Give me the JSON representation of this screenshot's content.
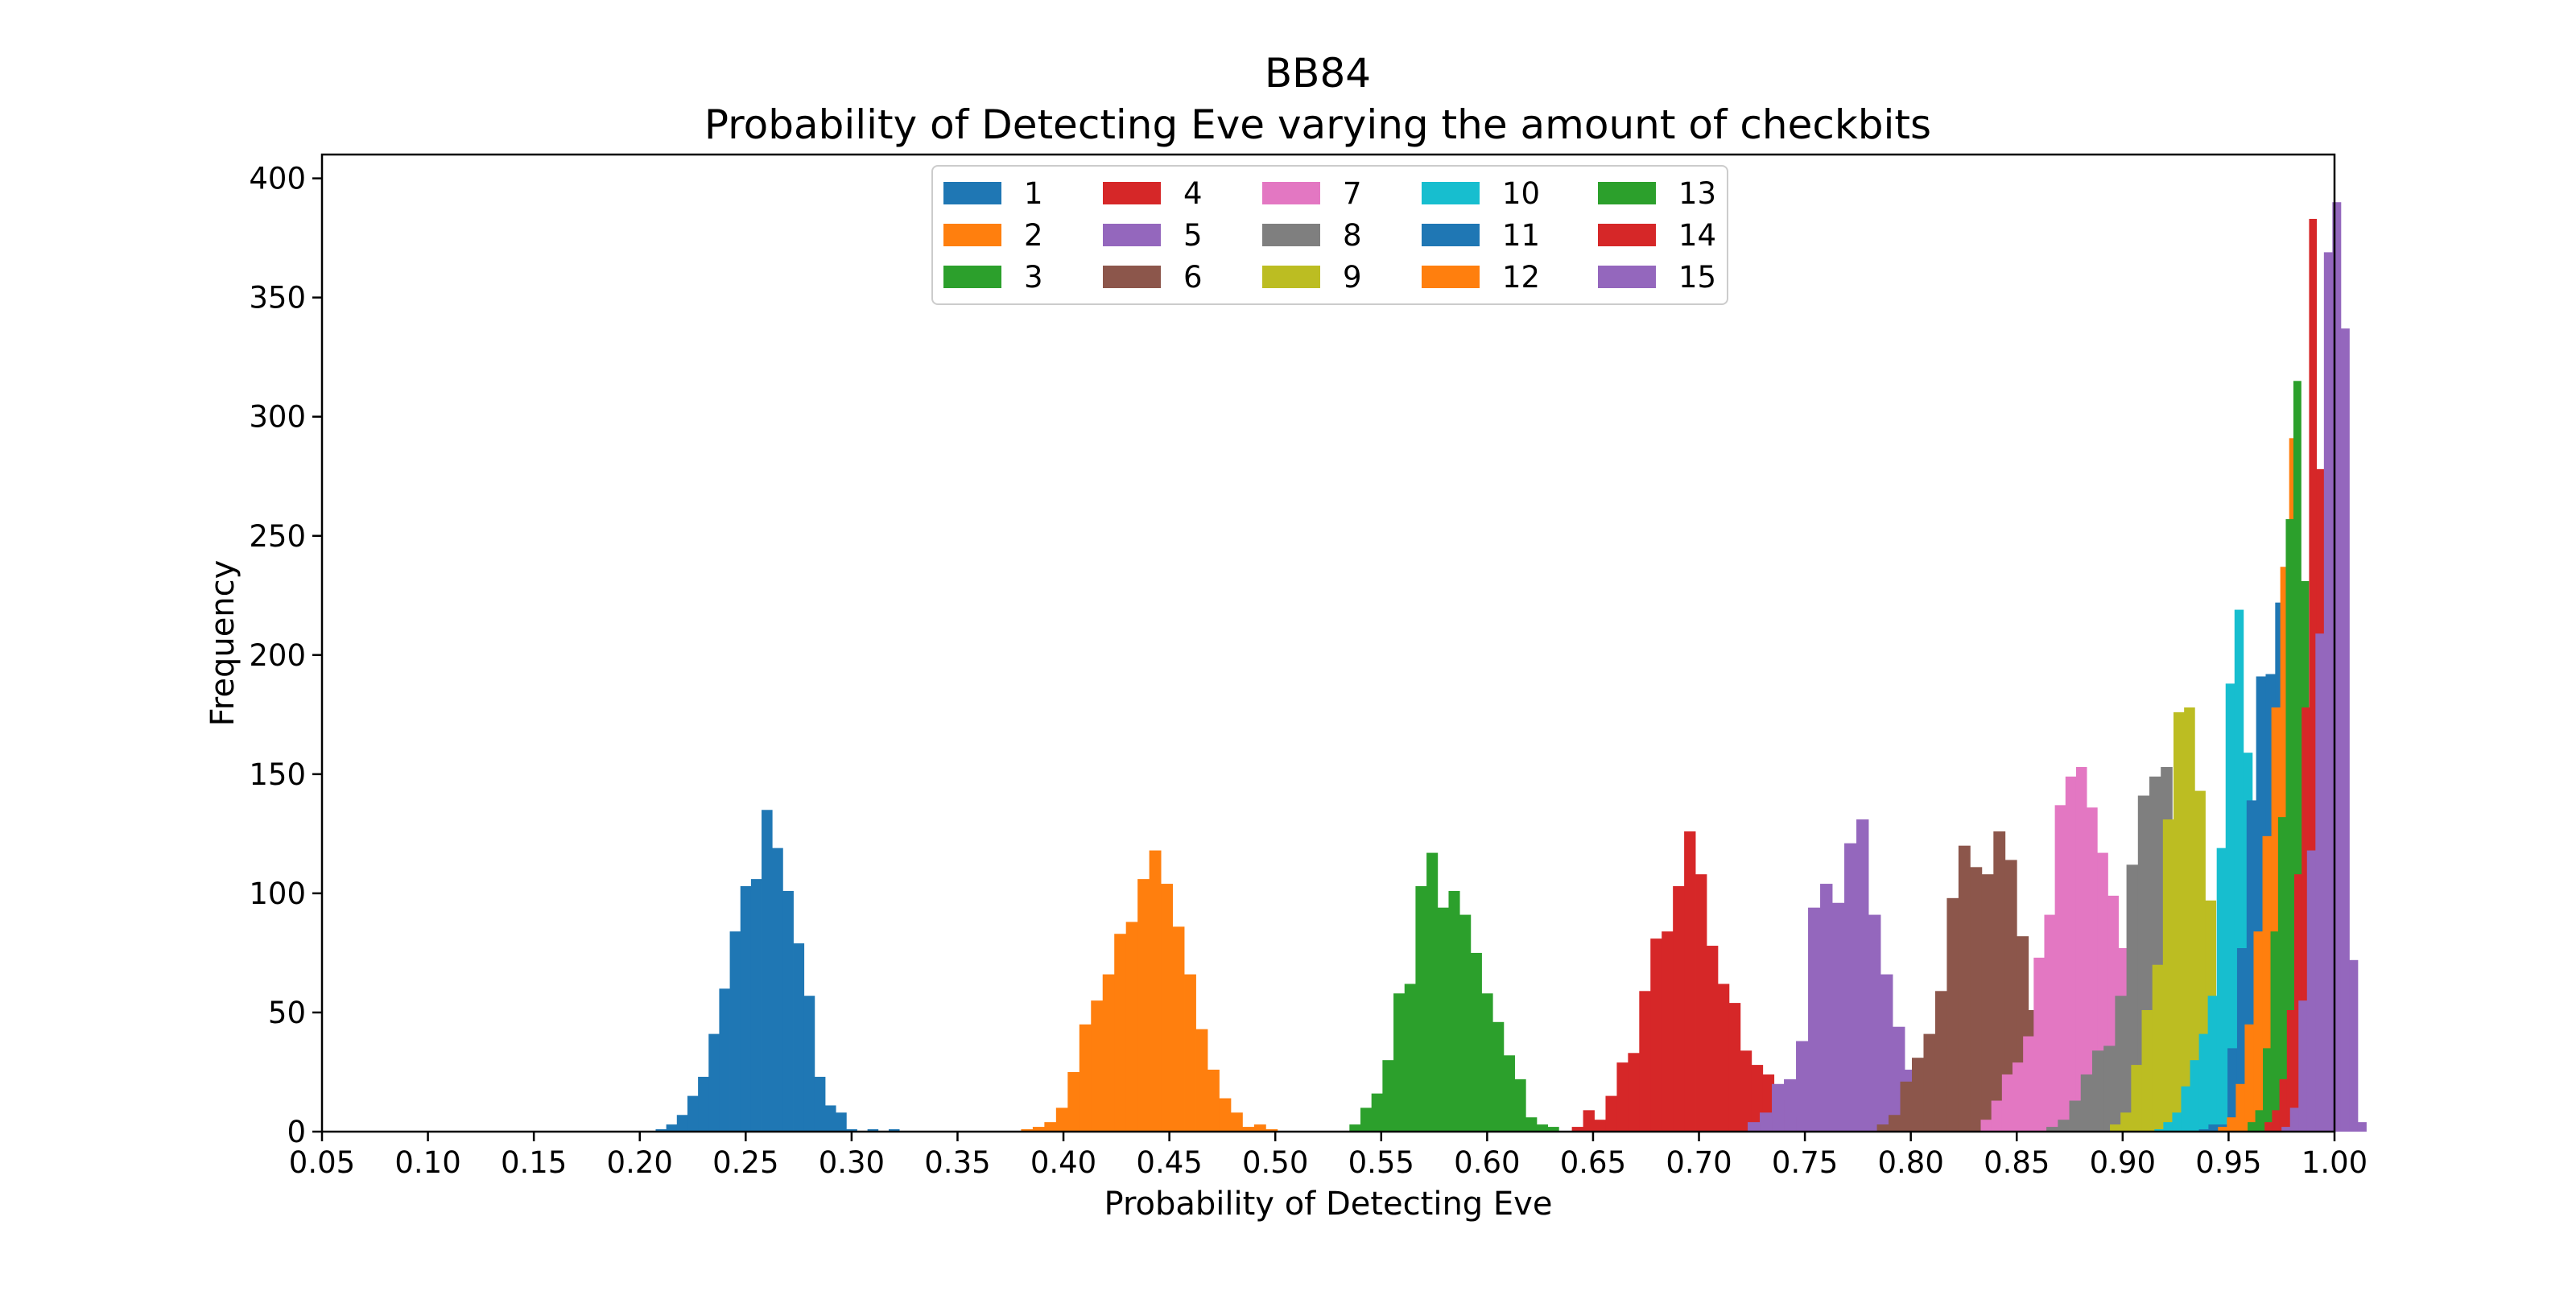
{
  "chart_data": {
    "type": "bar",
    "title": "BB84",
    "subtitle": "Probability of Detecting Eve varying the amount of checkbits",
    "xlabel": "Probability of Detecting Eve",
    "ylabel": "Frequency",
    "xlim": [
      0.05,
      1.0
    ],
    "ylim": [
      0,
      410
    ],
    "xticks": [
      "0.05",
      "0.10",
      "0.15",
      "0.20",
      "0.25",
      "0.30",
      "0.35",
      "0.40",
      "0.45",
      "0.50",
      "0.55",
      "0.60",
      "0.65",
      "0.70",
      "0.75",
      "0.80",
      "0.85",
      "0.90",
      "0.95",
      "1.00"
    ],
    "yticks": [
      "0",
      "50",
      "100",
      "150",
      "200",
      "250",
      "300",
      "350",
      "400"
    ],
    "grid": false,
    "legend_position": "top-center",
    "series": [
      {
        "name": "1",
        "color": "#1f77b4",
        "bin_start": 0.2075,
        "bin_width": 0.005,
        "values": [
          1,
          3,
          7,
          15,
          23,
          41,
          60,
          84,
          103,
          106,
          135,
          119,
          101,
          79,
          57,
          23,
          11,
          8,
          1,
          0,
          1,
          0,
          1
        ]
      },
      {
        "name": "2",
        "color": "#ff7f0e",
        "bin_start": 0.38,
        "bin_width": 0.0055,
        "values": [
          1,
          2,
          4,
          10,
          25,
          45,
          55,
          66,
          83,
          88,
          106,
          118,
          104,
          86,
          66,
          43,
          26,
          14,
          8,
          2,
          3,
          1
        ]
      },
      {
        "name": "3",
        "color": "#2ca02c",
        "bin_start": 0.535,
        "bin_width": 0.0052,
        "values": [
          3,
          10,
          16,
          30,
          58,
          62,
          103,
          117,
          94,
          101,
          91,
          75,
          58,
          46,
          32,
          22,
          6,
          3,
          2
        ]
      },
      {
        "name": "4",
        "color": "#d62728",
        "bin_start": 0.64,
        "bin_width": 0.0053,
        "values": [
          2,
          9,
          5,
          15,
          29,
          33,
          59,
          81,
          84,
          103,
          126,
          108,
          78,
          62,
          54,
          34,
          28,
          24,
          13,
          6,
          5
        ]
      },
      {
        "name": "5",
        "color": "#9467bd",
        "bin_start": 0.723,
        "bin_width": 0.0057,
        "values": [
          4,
          8,
          20,
          22,
          38,
          94,
          104,
          96,
          121,
          131,
          91,
          66,
          44,
          26,
          13
        ]
      },
      {
        "name": "6",
        "color": "#8c564b",
        "bin_start": 0.784,
        "bin_width": 0.0055,
        "values": [
          3,
          7,
          21,
          31,
          41,
          59,
          98,
          120,
          111,
          108,
          126,
          114,
          82,
          51,
          11
        ]
      },
      {
        "name": "7",
        "color": "#e377c2",
        "bin_start": 0.833,
        "bin_width": 0.005,
        "values": [
          5,
          13,
          24,
          29,
          40,
          73,
          91,
          137,
          149,
          153,
          136,
          117,
          99,
          77,
          52,
          28
        ]
      },
      {
        "name": "8",
        "color": "#7f7f7f",
        "bin_start": 0.864,
        "bin_width": 0.0054,
        "values": [
          2,
          5,
          13,
          24,
          34,
          36,
          57,
          112,
          141,
          149,
          153,
          129,
          56,
          6
        ]
      },
      {
        "name": "9",
        "color": "#bcbd22",
        "bin_start": 0.894,
        "bin_width": 0.005,
        "values": [
          3,
          8,
          28,
          51,
          70,
          131,
          176,
          178,
          143,
          97
        ]
      },
      {
        "name": "10",
        "color": "#17becf",
        "bin_start": 0.915,
        "bin_width": 0.0042,
        "values": [
          1,
          4,
          8,
          19,
          30,
          41,
          57,
          119,
          188,
          219,
          159,
          107,
          61
        ]
      },
      {
        "name": "11",
        "color": "#1f77b4",
        "bin_start": 0.936,
        "bin_width": 0.0045,
        "values": [
          1,
          3,
          3,
          35,
          77,
          139,
          191,
          192,
          222,
          224,
          197,
          132,
          44,
          5
        ]
      },
      {
        "name": "12",
        "color": "#ff7f0e",
        "bin_start": 0.945,
        "bin_width": 0.0042,
        "values": [
          2,
          6,
          20,
          45,
          84,
          124,
          178,
          237,
          291,
          210,
          132,
          59,
          11
        ]
      },
      {
        "name": "13",
        "color": "#2ca02c",
        "bin_start": 0.959,
        "bin_width": 0.0036,
        "values": [
          4,
          9,
          35,
          84,
          132,
          257,
          315,
          231,
          167,
          79,
          17
        ]
      },
      {
        "name": "14",
        "color": "#d62728",
        "bin_start": 0.967,
        "bin_width": 0.0035,
        "values": [
          4,
          9,
          22,
          51,
          108,
          178,
          383,
          278,
          149
        ]
      },
      {
        "name": "15",
        "color": "#9467bd",
        "bin_start": 0.975,
        "bin_width": 0.004,
        "values": [
          2,
          10,
          55,
          118,
          209,
          369,
          390,
          337,
          72,
          4
        ]
      }
    ]
  }
}
